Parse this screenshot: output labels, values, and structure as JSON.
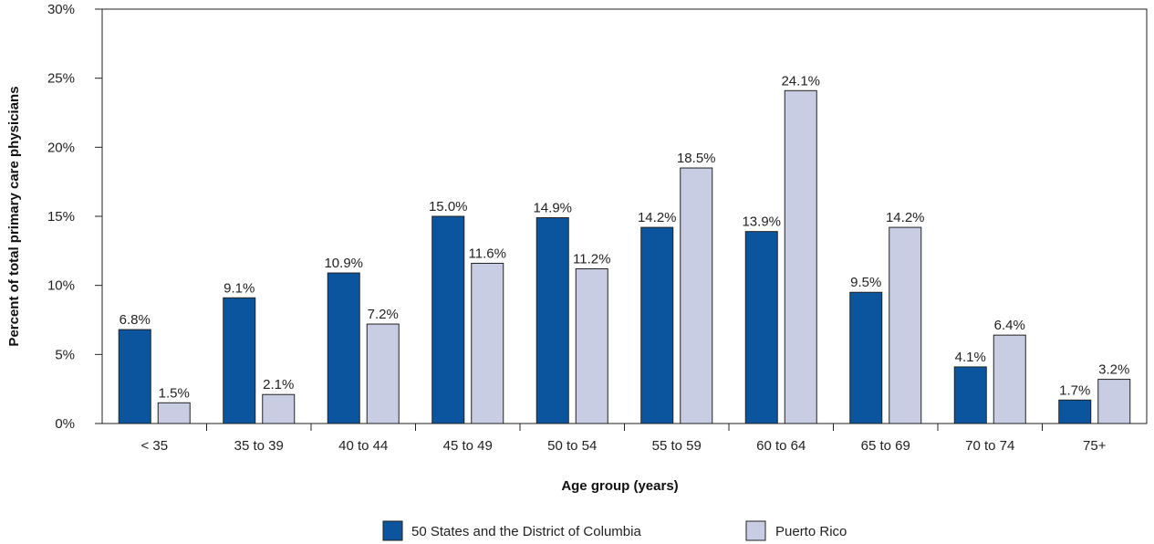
{
  "chart_data": {
    "type": "bar",
    "title": "",
    "xlabel": "Age group (years)",
    "ylabel": "Percent of total primary care physicians",
    "ylim": [
      0,
      30
    ],
    "yticks": [
      "0%",
      "5%",
      "10%",
      "15%",
      "20%",
      "25%",
      "30%"
    ],
    "categories": [
      "< 35",
      "35 to 39",
      "40 to 44",
      "45 to 49",
      "50 to 54",
      "55 to 59",
      "60 to 64",
      "65 to 69",
      "70 to 74",
      "75+"
    ],
    "series": [
      {
        "name": "50 States and the District of Columbia",
        "color": "#0b559e",
        "values": [
          6.8,
          9.1,
          10.9,
          15.0,
          14.9,
          14.2,
          13.9,
          9.5,
          4.1,
          1.7
        ],
        "labels": [
          "6.8%",
          "9.1%",
          "10.9%",
          "15.0%",
          "14.9%",
          "14.2%",
          "13.9%",
          "9.5%",
          "4.1%",
          "1.7%"
        ]
      },
      {
        "name": "Puerto Rico",
        "color": "#c8cde3",
        "values": [
          1.5,
          2.1,
          7.2,
          11.6,
          11.2,
          18.5,
          24.1,
          14.2,
          6.4,
          3.2
        ],
        "labels": [
          "1.5%",
          "2.1%",
          "7.2%",
          "11.6%",
          "11.2%",
          "18.5%",
          "24.1%",
          "14.2%",
          "6.4%",
          "3.2%"
        ]
      }
    ],
    "legend_position": "bottom",
    "grid": false
  }
}
